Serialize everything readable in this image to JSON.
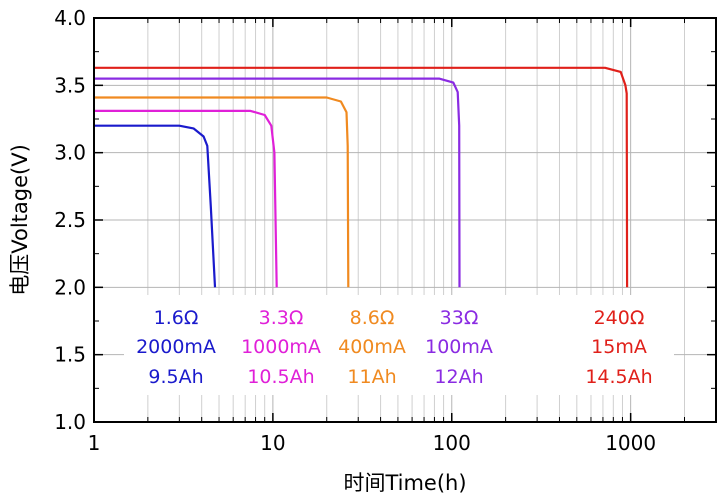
{
  "chart_data": {
    "type": "line",
    "title": "",
    "xlabel": "时间Time(h)",
    "ylabel": "电压Voltage(V)",
    "x_scale": "log",
    "xlim": [
      1,
      3000
    ],
    "ylim": [
      1.0,
      4.0
    ],
    "grid": true,
    "x_tick_labels": [
      "1",
      "10",
      "100",
      "1000"
    ],
    "y_tick_labels": [
      "1.0",
      "1.5",
      "2.0",
      "2.5",
      "3.0",
      "3.5",
      "4.0"
    ],
    "series": [
      {
        "color": "#1a1acc",
        "x": [
          1,
          3,
          3.6,
          4.1,
          4.3,
          4.5,
          4.75
        ],
        "y": [
          3.2,
          3.2,
          3.18,
          3.12,
          3.05,
          2.6,
          2.0
        ],
        "labels": [
          "1.6Ω",
          "2000mA",
          "9.5Ah"
        ]
      },
      {
        "color": "#e020d8",
        "x": [
          1,
          7.5,
          9,
          9.8,
          10.2,
          10.5
        ],
        "y": [
          3.31,
          3.31,
          3.28,
          3.2,
          3.0,
          2.0
        ],
        "labels": [
          "3.3Ω",
          "1000mA",
          "10.5Ah"
        ]
      },
      {
        "color": "#f08a20",
        "x": [
          1,
          20,
          24,
          25.8,
          26.2,
          26.4
        ],
        "y": [
          3.41,
          3.41,
          3.38,
          3.3,
          3.05,
          2.0
        ],
        "labels": [
          "8.6Ω",
          "400mA",
          "11Ah"
        ]
      },
      {
        "color": "#8a2be2",
        "x": [
          1,
          85,
          102,
          108,
          110,
          110.5
        ],
        "y": [
          3.55,
          3.55,
          3.52,
          3.45,
          3.2,
          2.0
        ],
        "labels": [
          "33Ω",
          "100mA",
          "12Ah"
        ]
      },
      {
        "color": "#e0201a",
        "x": [
          1,
          720,
          880,
          935,
          950,
          955
        ],
        "y": [
          3.63,
          3.63,
          3.6,
          3.5,
          3.44,
          2.0
        ],
        "labels": [
          "240Ω",
          "15mA",
          "14.5Ah"
        ]
      }
    ]
  }
}
